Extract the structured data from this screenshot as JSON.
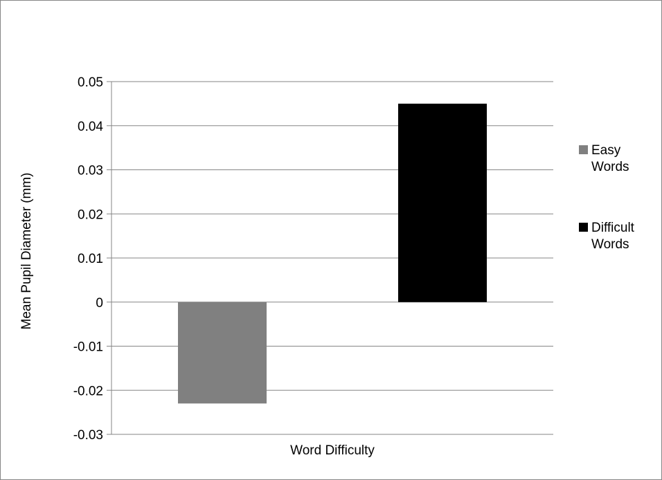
{
  "chart_data": {
    "type": "bar",
    "title": "",
    "xlabel": "Word Difficulty",
    "ylabel": "Mean Pupil Diameter (mm)",
    "ylim": [
      -0.03,
      0.05
    ],
    "yticks": [
      "0.05",
      "0.04",
      "0.03",
      "0.02",
      "0.01",
      "0",
      "-0.01",
      "-0.02",
      "-0.03"
    ],
    "grid": true,
    "legend_position": "right",
    "categories": [
      "Word Difficulty"
    ],
    "series": [
      {
        "name": "Easy Words",
        "legend_lines": [
          "Easy",
          "Words"
        ],
        "color": "#808080",
        "values": [
          -0.023
        ]
      },
      {
        "name": "Difficult Words",
        "legend_lines": [
          "Difficult",
          "Words"
        ],
        "color": "#000000",
        "values": [
          0.045
        ]
      }
    ]
  }
}
